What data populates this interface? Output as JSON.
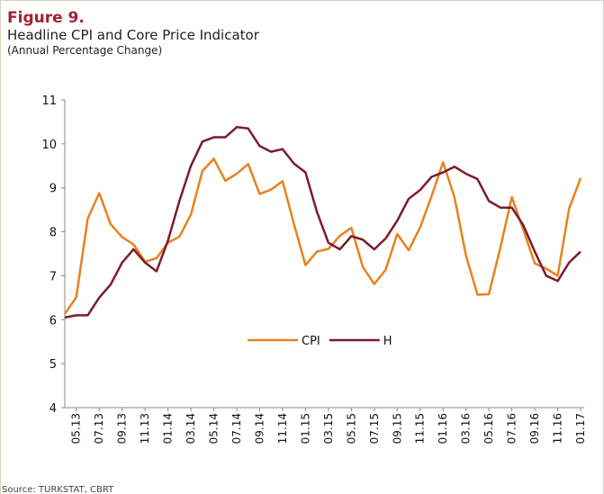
{
  "chart_data": {
    "type": "line",
    "figure_label": "Figure 9.",
    "title": "Headline CPI and Core Price Indicator",
    "subtitle": "(Annual  Percentage Change)",
    "source": "Source: TURKSTAT, CBRT",
    "categories": [
      null,
      "05.13",
      null,
      "07.13",
      null,
      "09.13",
      null,
      "11.13",
      null,
      "01.14",
      null,
      "03.14",
      null,
      "05.14",
      null,
      "07.14",
      null,
      "09.14",
      null,
      "11.14",
      null,
      "01.15",
      null,
      "03.15",
      null,
      "05.15",
      null,
      "07.15",
      null,
      "09.15",
      null,
      "11.15",
      null,
      "01.16",
      null,
      "03.16",
      null,
      "05.16",
      null,
      "07.16",
      null,
      "09.16",
      null,
      "11.16",
      null,
      "01.17"
    ],
    "series": [
      {
        "name": "CPI",
        "color": "#e8821e",
        "values": [
          6.13,
          6.51,
          8.3,
          8.88,
          8.17,
          7.88,
          7.71,
          7.32,
          7.4,
          7.75,
          7.89,
          8.39,
          9.38,
          9.66,
          9.16,
          9.32,
          9.54,
          8.86,
          8.96,
          9.15,
          8.17,
          7.24,
          7.55,
          7.61,
          7.91,
          8.09,
          7.2,
          6.81,
          7.14,
          7.95,
          7.58,
          8.1,
          8.81,
          9.58,
          8.78,
          7.46,
          6.57,
          6.58,
          7.64,
          8.79,
          8.05,
          7.28,
          7.16,
          7.0,
          8.53,
          9.22
        ]
      },
      {
        "name": "H",
        "color": "#7b1c2e",
        "values": [
          6.05,
          6.1,
          6.1,
          6.5,
          6.8,
          7.3,
          7.6,
          7.3,
          7.1,
          7.8,
          8.7,
          9.5,
          10.05,
          10.15,
          10.15,
          10.38,
          10.35,
          9.95,
          9.82,
          9.88,
          9.55,
          9.35,
          8.45,
          7.75,
          7.6,
          7.9,
          7.82,
          7.6,
          7.85,
          8.25,
          8.75,
          8.95,
          9.25,
          9.35,
          9.48,
          9.32,
          9.2,
          8.7,
          8.55,
          8.55,
          8.15,
          7.55,
          7.0,
          6.88,
          7.3,
          7.55
        ]
      }
    ],
    "ylim": [
      4,
      11
    ],
    "yticks": [
      4,
      5,
      6,
      7,
      8,
      9,
      10,
      11
    ],
    "grid": false,
    "legend": "center"
  }
}
